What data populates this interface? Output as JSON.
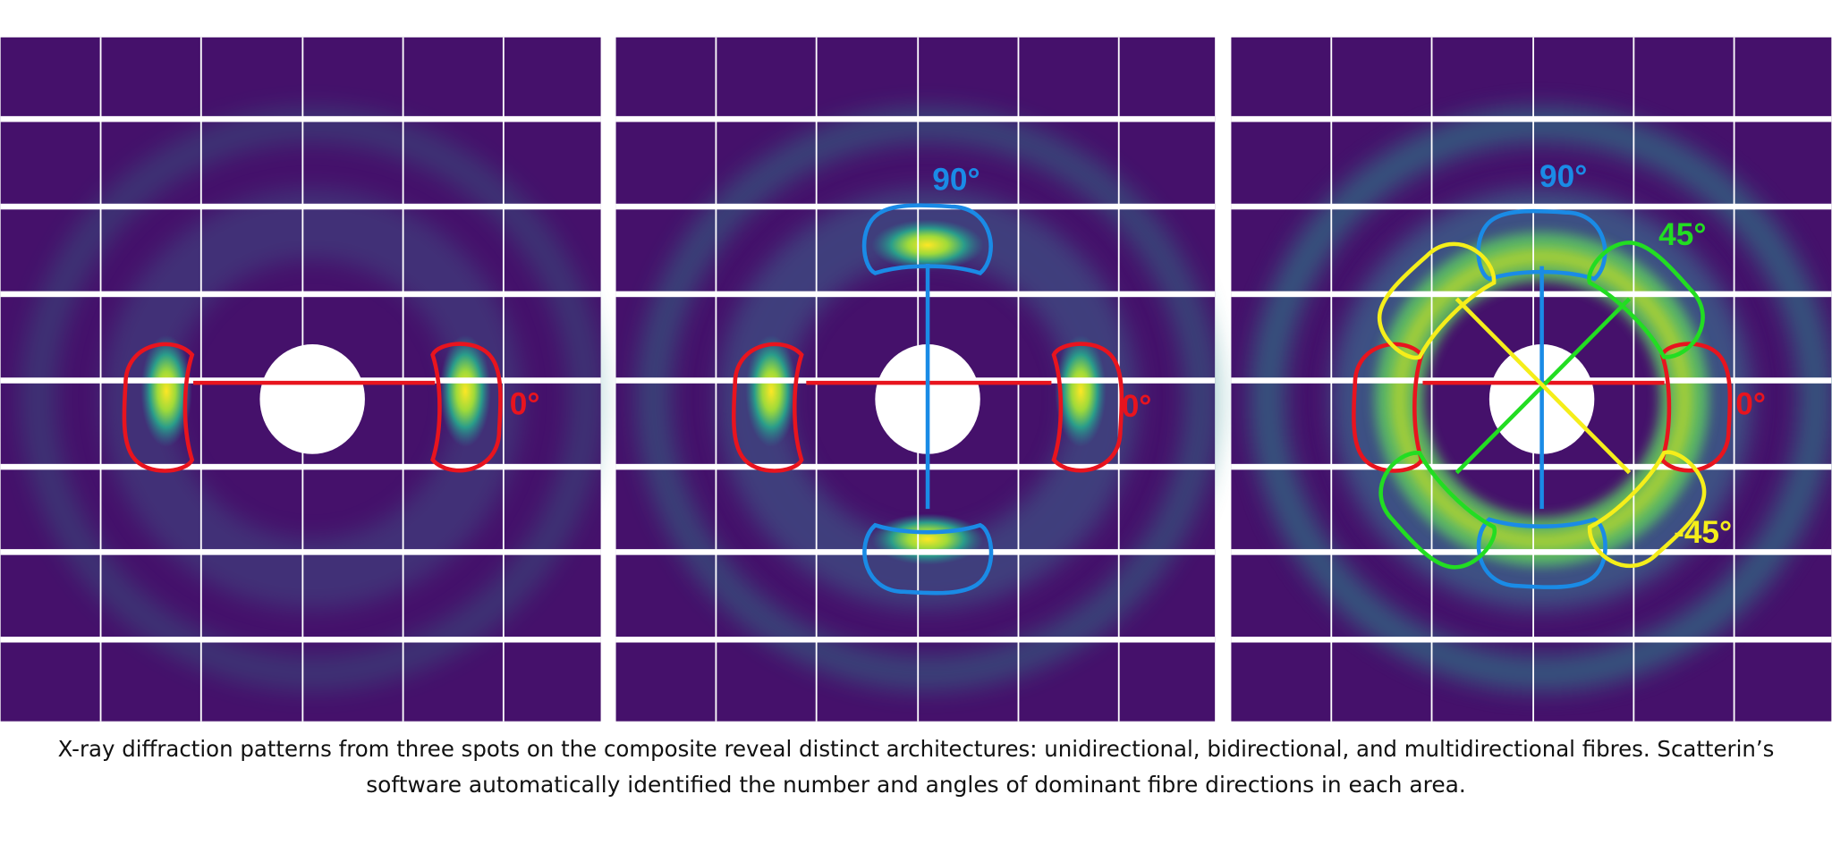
{
  "panels": [
    {
      "labels": [
        "0°"
      ]
    },
    {
      "labels": [
        "90°",
        "0°"
      ]
    },
    {
      "labels": [
        "90°",
        "45°",
        "0°",
        "-45°"
      ]
    }
  ],
  "caption": {
    "lines": [
      "X-ray diffraction patterns from three spots on the composite reveal distinct architectures: unidirectional, bidirectional, and multidirectional fibres. Scatterin’s",
      "software automatically identified the number and angles of dominant fibre directions in each area."
    ]
  }
}
